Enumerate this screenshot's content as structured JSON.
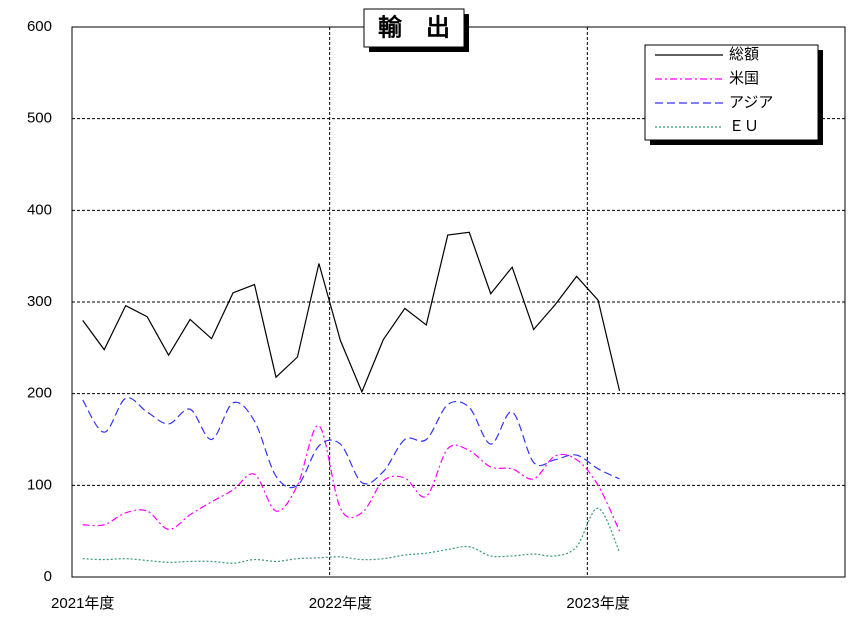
{
  "chart_data": {
    "type": "line",
    "title": "輸　出",
    "x": [
      0,
      1,
      2,
      3,
      4,
      5,
      6,
      7,
      8,
      9,
      10,
      11,
      12,
      13,
      14,
      15,
      16,
      17,
      18,
      19,
      20,
      21,
      22,
      23,
      24,
      25
    ],
    "xlim": [
      -0.5,
      35.5
    ],
    "xticks": [
      {
        "value": 0,
        "label": "2021年度"
      },
      {
        "value": 12,
        "label": "2022年度"
      },
      {
        "value": 24,
        "label": "2023年度"
      }
    ],
    "xgrid": [
      11.5,
      23.5
    ],
    "ylim": [
      0,
      600
    ],
    "yticks": [
      0,
      100,
      200,
      300,
      400,
      500,
      600
    ],
    "grid": true,
    "legend": "upper right",
    "series": [
      {
        "name": "総額",
        "color": "#000000",
        "style": "solid",
        "smooth": false,
        "values": [
          280,
          248,
          296,
          284,
          242,
          281,
          260,
          310,
          319,
          218,
          240,
          342,
          258,
          202,
          259,
          293,
          275,
          373,
          376,
          309,
          338,
          270,
          297,
          328,
          302,
          203
        ]
      },
      {
        "name": "米国",
        "color": "#ff00ff",
        "style": "dashdot",
        "smooth": true,
        "values": [
          57,
          57,
          70,
          72,
          52,
          68,
          82,
          95,
          112,
          72,
          100,
          165,
          75,
          70,
          105,
          108,
          88,
          140,
          138,
          120,
          118,
          107,
          132,
          128,
          100,
          50
        ]
      },
      {
        "name": "アジア",
        "color": "#3333ff",
        "style": "dashed",
        "smooth": true,
        "values": [
          193,
          158,
          195,
          180,
          167,
          183,
          150,
          190,
          170,
          110,
          100,
          143,
          145,
          103,
          115,
          150,
          150,
          188,
          185,
          145,
          180,
          125,
          128,
          133,
          118,
          107
        ]
      },
      {
        "name": "ＥＵ",
        "color": "#339977",
        "style": "dotted",
        "smooth": true,
        "values": [
          20,
          19,
          20,
          18,
          16,
          17,
          17,
          15,
          19,
          17,
          20,
          21,
          22,
          19,
          20,
          24,
          26,
          30,
          33,
          23,
          23,
          25,
          23,
          33,
          75,
          27
        ]
      }
    ]
  }
}
